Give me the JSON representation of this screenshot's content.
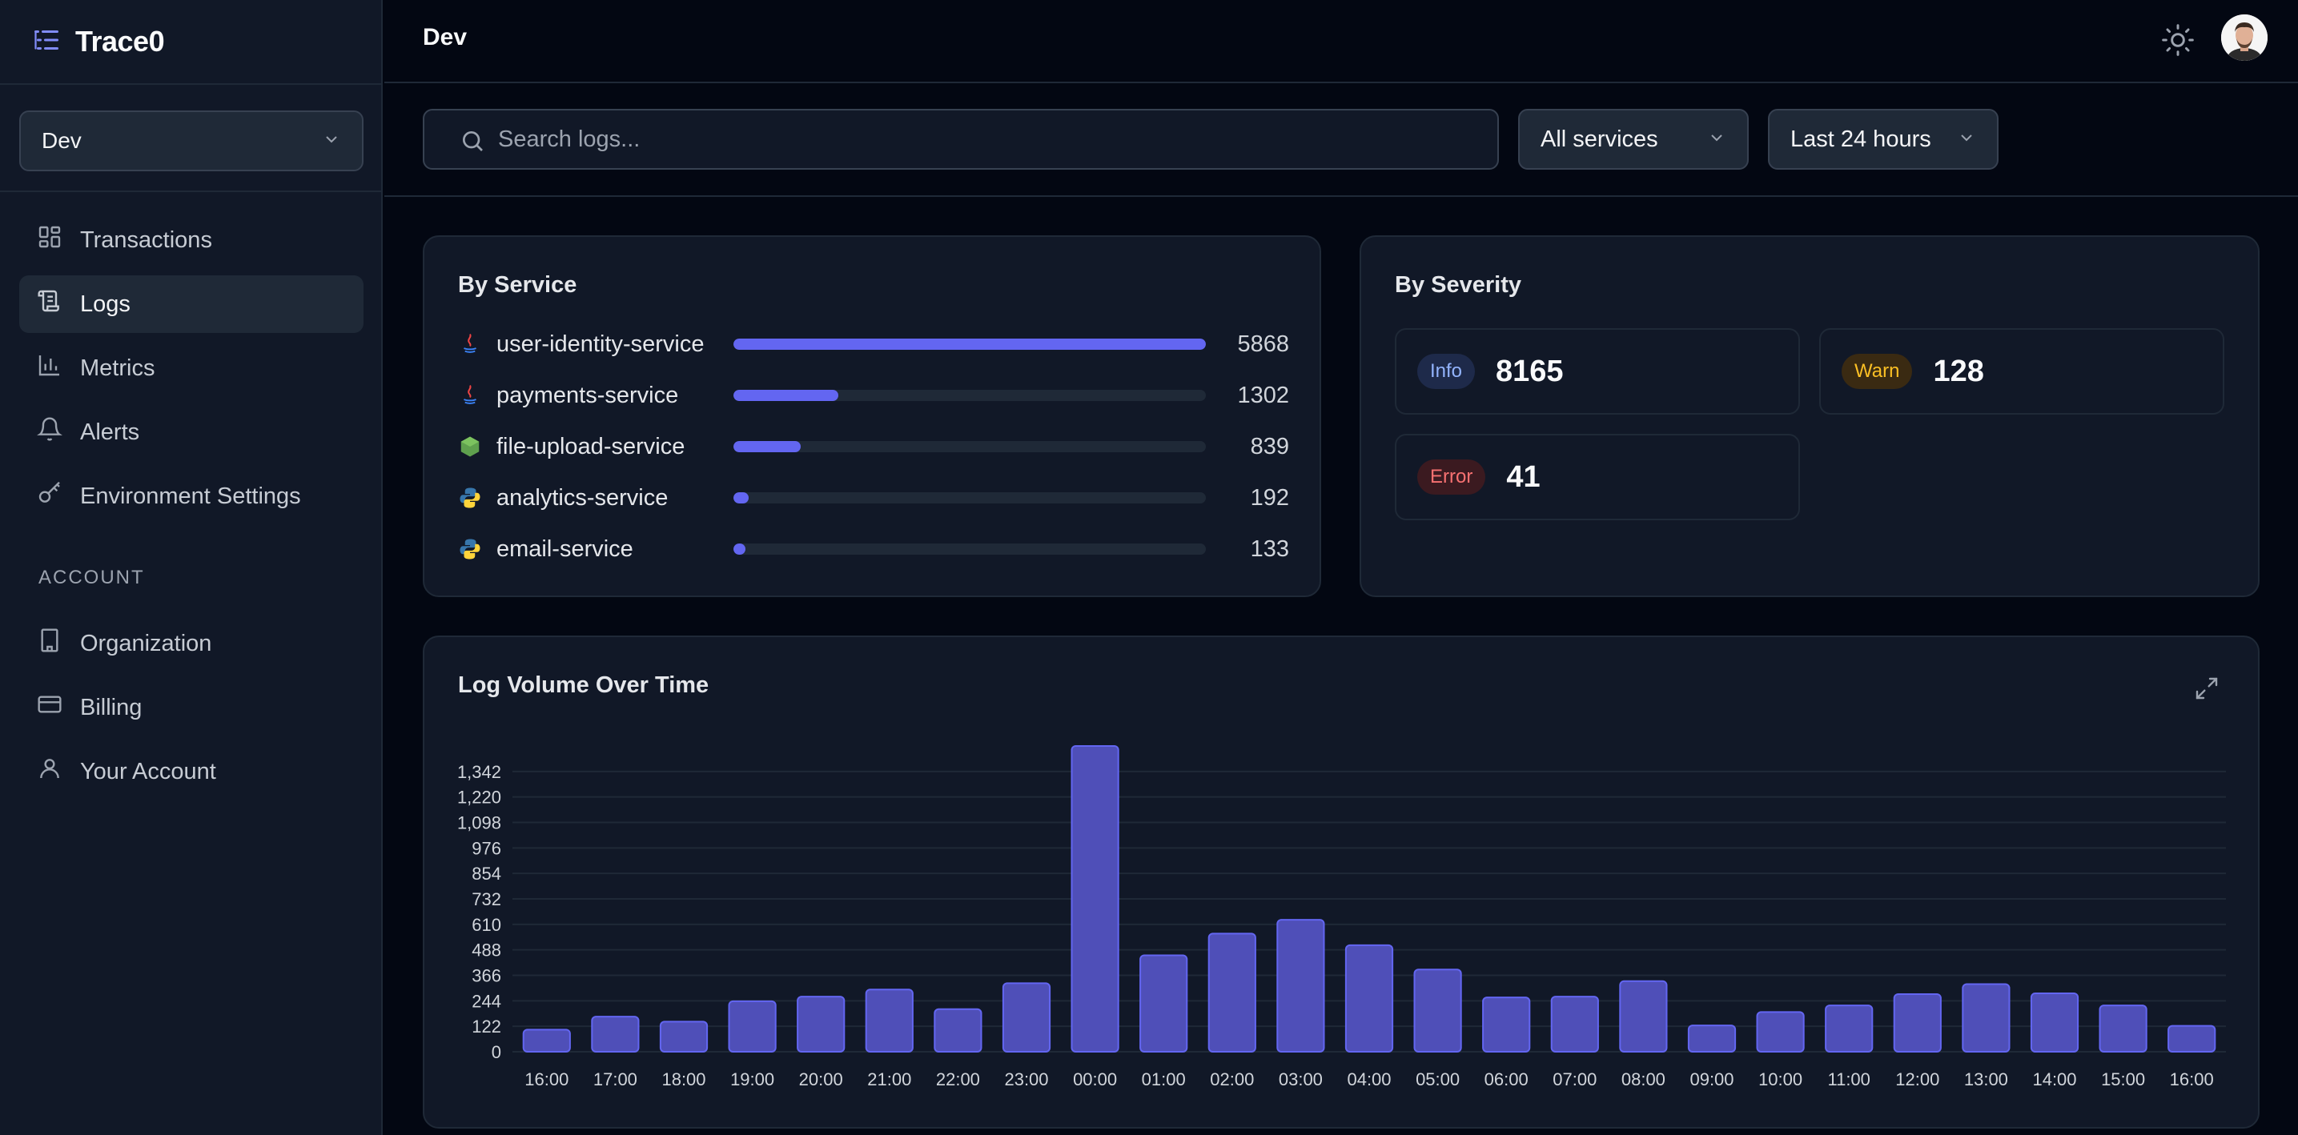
{
  "app": {
    "name": "Trace0",
    "environment": "Dev"
  },
  "sidebar": {
    "env_select_label": "Dev",
    "main_items": [
      {
        "label": "Transactions",
        "icon": "grid-icon",
        "active": false
      },
      {
        "label": "Logs",
        "icon": "scroll-icon",
        "active": true
      },
      {
        "label": "Metrics",
        "icon": "bar-chart-icon",
        "active": false
      },
      {
        "label": "Alerts",
        "icon": "bell-icon",
        "active": false
      },
      {
        "label": "Environment Settings",
        "icon": "key-icon",
        "active": false
      }
    ],
    "account_section_label": "ACCOUNT",
    "account_items": [
      {
        "label": "Organization",
        "icon": "building-icon"
      },
      {
        "label": "Billing",
        "icon": "credit-card-icon"
      },
      {
        "label": "Your Account",
        "icon": "user-icon"
      }
    ]
  },
  "topbar": {
    "title": "Dev"
  },
  "filters": {
    "search_placeholder": "Search logs...",
    "service_filter": "All services",
    "time_filter": "Last 24 hours"
  },
  "by_service": {
    "title": "By Service",
    "items": [
      {
        "name": "user-identity-service",
        "count": 5868,
        "icon": "java-icon"
      },
      {
        "name": "payments-service",
        "count": 1302,
        "icon": "java-icon"
      },
      {
        "name": "file-upload-service",
        "count": 839,
        "icon": "nodejs-icon"
      },
      {
        "name": "analytics-service",
        "count": 192,
        "icon": "python-icon"
      },
      {
        "name": "email-service",
        "count": 133,
        "icon": "python-icon"
      }
    ]
  },
  "by_severity": {
    "title": "By Severity",
    "items": [
      {
        "label": "Info",
        "count": "8165"
      },
      {
        "label": "Warn",
        "count": "128"
      },
      {
        "label": "Error",
        "count": "41"
      }
    ]
  },
  "chart_data": {
    "type": "bar",
    "title": "Log Volume Over Time",
    "xlabel": "",
    "ylabel": "",
    "categories": [
      "16:00",
      "17:00",
      "18:00",
      "19:00",
      "20:00",
      "21:00",
      "22:00",
      "23:00",
      "00:00",
      "01:00",
      "02:00",
      "03:00",
      "04:00",
      "05:00",
      "06:00",
      "07:00",
      "08:00",
      "09:00",
      "10:00",
      "11:00",
      "12:00",
      "13:00",
      "14:00",
      "15:00",
      "16:00"
    ],
    "values": [
      106,
      168,
      144,
      242,
      264,
      298,
      204,
      328,
      1464,
      462,
      566,
      632,
      510,
      394,
      260,
      264,
      338,
      126,
      190,
      222,
      276,
      324,
      280,
      222,
      124
    ],
    "ylim": [
      0,
      1464
    ],
    "yticks": [
      0,
      122,
      244,
      366,
      488,
      610,
      732,
      854,
      976,
      1098,
      1220,
      1342
    ],
    "ytick_labels": [
      "0",
      "122",
      "244",
      "366",
      "488",
      "610",
      "732",
      "854",
      "976",
      "1,098",
      "1,220",
      "1,342"
    ],
    "grid": true,
    "bar_color": "#4f4fb8",
    "bar_stroke": "#6366f1"
  }
}
